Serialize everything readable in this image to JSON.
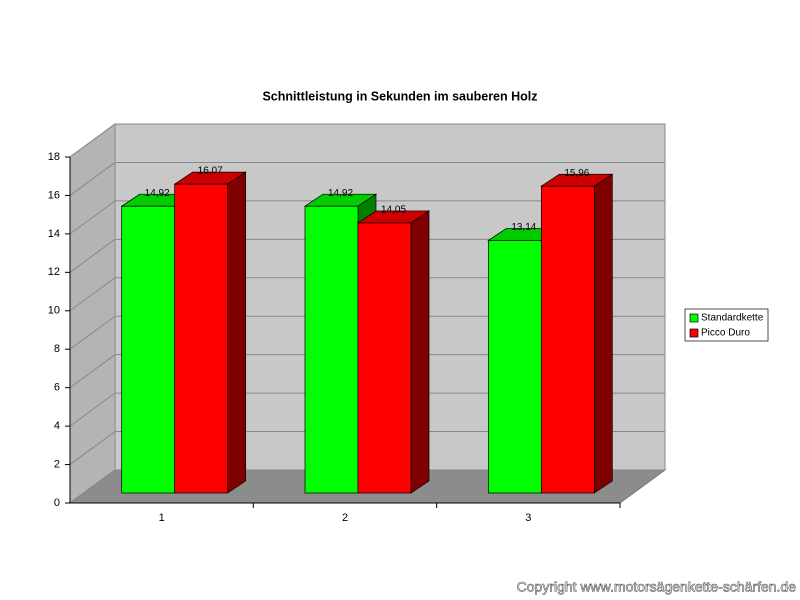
{
  "chart_data": {
    "type": "bar3d",
    "title": "Schnittleistung in Sekunden im sauberen Holz",
    "categories": [
      "1",
      "2",
      "3"
    ],
    "series": [
      {
        "name": "Standardkette",
        "color": "#00ff00",
        "values": [
          14.92,
          14.92,
          13.14
        ],
        "value_labels": [
          "14,92",
          "14,92",
          "13,14"
        ]
      },
      {
        "name": "Picco Duro",
        "color": "#ff0000",
        "values": [
          16.07,
          14.05,
          15.96
        ],
        "value_labels": [
          "16,07",
          "14,05",
          "15,96"
        ]
      }
    ],
    "ylim": [
      0,
      18
    ],
    "yticks": [
      0,
      2,
      4,
      6,
      8,
      10,
      12,
      14,
      16,
      18
    ],
    "grid": true,
    "legend": "right"
  },
  "copyright": "Copyright www.motorsägenkette-schärfen.de"
}
